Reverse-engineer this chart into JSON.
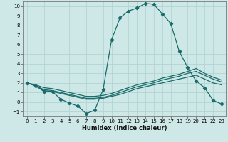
{
  "xlabel": "Humidex (Indice chaleur)",
  "xlim": [
    -0.5,
    23.5
  ],
  "ylim": [
    -1.5,
    10.5
  ],
  "xticks": [
    0,
    1,
    2,
    3,
    4,
    5,
    6,
    7,
    8,
    9,
    10,
    11,
    12,
    13,
    14,
    15,
    16,
    17,
    18,
    19,
    20,
    21,
    22,
    23
  ],
  "yticks": [
    -1,
    0,
    1,
    2,
    3,
    4,
    5,
    6,
    7,
    8,
    9,
    10
  ],
  "background_color": "#cde8e6",
  "grid_color": "#b2d4d2",
  "line_color": "#1a6b6b",
  "main_curve": {
    "x": [
      0,
      1,
      2,
      3,
      4,
      5,
      6,
      7,
      8,
      9,
      10,
      11,
      12,
      13,
      14,
      15,
      16,
      17,
      18,
      19,
      20,
      21,
      22,
      23
    ],
    "y": [
      2.0,
      1.7,
      1.1,
      1.1,
      0.3,
      -0.1,
      -0.4,
      -1.2,
      -0.85,
      1.3,
      6.5,
      8.8,
      9.5,
      9.8,
      10.3,
      10.2,
      9.2,
      8.2,
      5.3,
      3.6,
      2.2,
      1.5,
      0.2,
      -0.2
    ]
  },
  "band_upper": {
    "x": [
      0,
      1,
      2,
      3,
      4,
      5,
      6,
      7,
      8,
      9,
      10,
      11,
      12,
      13,
      14,
      15,
      16,
      17,
      18,
      19,
      20,
      21,
      22,
      23
    ],
    "y": [
      2.0,
      1.8,
      1.5,
      1.4,
      1.2,
      1.0,
      0.8,
      0.6,
      0.6,
      0.7,
      0.9,
      1.2,
      1.5,
      1.8,
      2.0,
      2.2,
      2.5,
      2.7,
      2.9,
      3.2,
      3.5,
      3.0,
      2.6,
      2.3
    ]
  },
  "band_mid": {
    "x": [
      0,
      1,
      2,
      3,
      4,
      5,
      6,
      7,
      8,
      9,
      10,
      11,
      12,
      13,
      14,
      15,
      16,
      17,
      18,
      19,
      20,
      21,
      22,
      23
    ],
    "y": [
      2.0,
      1.7,
      1.3,
      1.2,
      1.0,
      0.8,
      0.6,
      0.4,
      0.4,
      0.5,
      0.7,
      1.0,
      1.3,
      1.6,
      1.8,
      2.0,
      2.3,
      2.5,
      2.7,
      3.0,
      3.2,
      2.8,
      2.4,
      2.1
    ]
  },
  "band_lower": {
    "x": [
      0,
      1,
      2,
      3,
      4,
      5,
      6,
      7,
      8,
      9,
      10,
      11,
      12,
      13,
      14,
      15,
      16,
      17,
      18,
      19,
      20,
      21,
      22,
      23
    ],
    "y": [
      2.0,
      1.7,
      1.2,
      1.1,
      0.9,
      0.7,
      0.5,
      0.3,
      0.3,
      0.4,
      0.6,
      0.8,
      1.1,
      1.4,
      1.6,
      1.8,
      2.0,
      2.2,
      2.4,
      2.6,
      2.8,
      2.4,
      2.0,
      1.8
    ]
  }
}
